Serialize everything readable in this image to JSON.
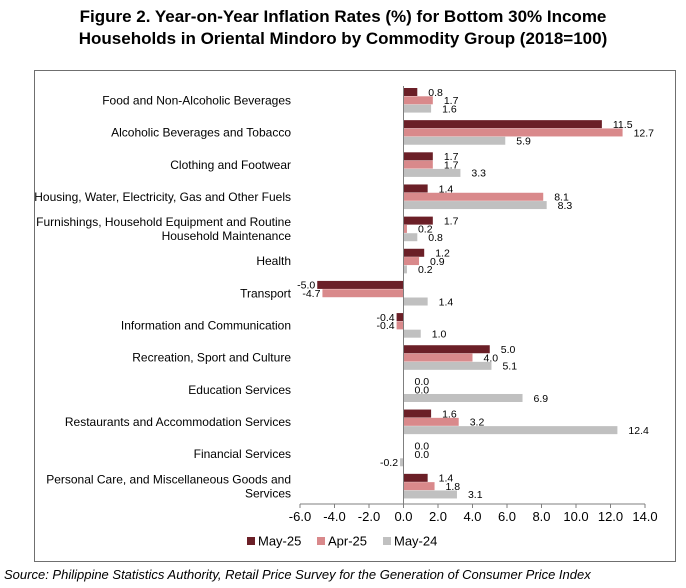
{
  "chart_data": {
    "type": "bar",
    "orientation": "horizontal",
    "title_line1": "Figure 2. Year-on-Year Inflation Rates (%) for Bottom 30% Income",
    "title_line2": "Households in Oriental Mindoro by Commodity Group (2018=100)",
    "categories": [
      [
        "Food and Non-Alcoholic Beverages"
      ],
      [
        "Alcoholic Beverages and Tobacco"
      ],
      [
        "Clothing and Footwear"
      ],
      [
        "Housing, Water, Electricity, Gas and Other Fuels"
      ],
      [
        "Furnishings, Household Equipment and Routine",
        "Household Maintenance"
      ],
      [
        "Health"
      ],
      [
        "Transport"
      ],
      [
        "Information and Communication"
      ],
      [
        "Recreation, Sport and Culture"
      ],
      [
        "Education Services"
      ],
      [
        "Restaurants and Accommodation Services"
      ],
      [
        "Financial Services"
      ],
      [
        "Personal Care, and Miscellaneous Goods and",
        "Services"
      ]
    ],
    "series": [
      {
        "name": "May-25",
        "color": "#6b1f27",
        "values": [
          0.8,
          11.5,
          1.7,
          1.4,
          1.7,
          1.2,
          -5.0,
          -0.4,
          5.0,
          0.0,
          1.6,
          0.0,
          1.4
        ]
      },
      {
        "name": "Apr-25",
        "color": "#d9898b",
        "values": [
          1.7,
          12.7,
          1.7,
          8.1,
          0.2,
          0.9,
          -4.7,
          -0.4,
          4.0,
          0.0,
          3.2,
          0.0,
          1.8
        ]
      },
      {
        "name": "May-24",
        "color": "#c0c0c0",
        "values": [
          1.6,
          5.9,
          3.3,
          8.3,
          0.8,
          0.2,
          1.4,
          1.0,
          5.1,
          6.9,
          12.4,
          -0.2,
          3.1
        ]
      }
    ],
    "xlim": [
      -6.0,
      14.0
    ],
    "xticks": [
      "-6.0",
      "-4.0",
      "-2.0",
      "0.0",
      "2.0",
      "4.0",
      "6.0",
      "8.0",
      "10.0",
      "12.0",
      "14.0"
    ],
    "grid": false,
    "legend_position": "bottom"
  },
  "source": "Source: Philippine Statistics Authority, Retail Price Survey for the Generation of Consumer Price Index"
}
